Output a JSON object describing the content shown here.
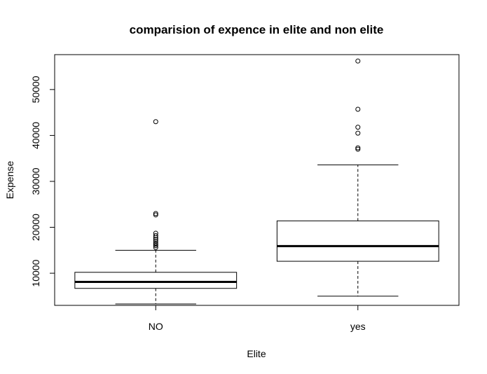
{
  "chart_data": {
    "type": "boxplot",
    "title": "comparision of expence in elite and non elite",
    "xlabel": "Elite",
    "ylabel": "Expense",
    "ylim": [
      3000,
      57600
    ],
    "y_ticks": [
      {
        "value": 10000,
        "label": "10000"
      },
      {
        "value": 20000,
        "label": "20000"
      },
      {
        "value": 30000,
        "label": "30000"
      },
      {
        "value": 40000,
        "label": "40000"
      },
      {
        "value": 50000,
        "label": "50000"
      }
    ],
    "categories": [
      "NO",
      "yes"
    ],
    "boxes": [
      {
        "category": "NO",
        "whisker_low": 3300,
        "q1": 6700,
        "median": 8100,
        "q3": 10200,
        "whisker_high": 15000,
        "outliers": [
          15600,
          16000,
          16300,
          16600,
          17000,
          17400,
          17800,
          18200,
          18700,
          22700,
          23000,
          43000
        ]
      },
      {
        "category": "yes",
        "whisker_low": 5000,
        "q1": 12600,
        "median": 15900,
        "q3": 21400,
        "whisker_high": 33600,
        "outliers": [
          37000,
          37300,
          40500,
          41800,
          45700,
          56200
        ]
      }
    ],
    "grid": false,
    "legend": "none",
    "colors": {
      "box_fill": "#ffffff",
      "stroke": "#000000"
    }
  }
}
